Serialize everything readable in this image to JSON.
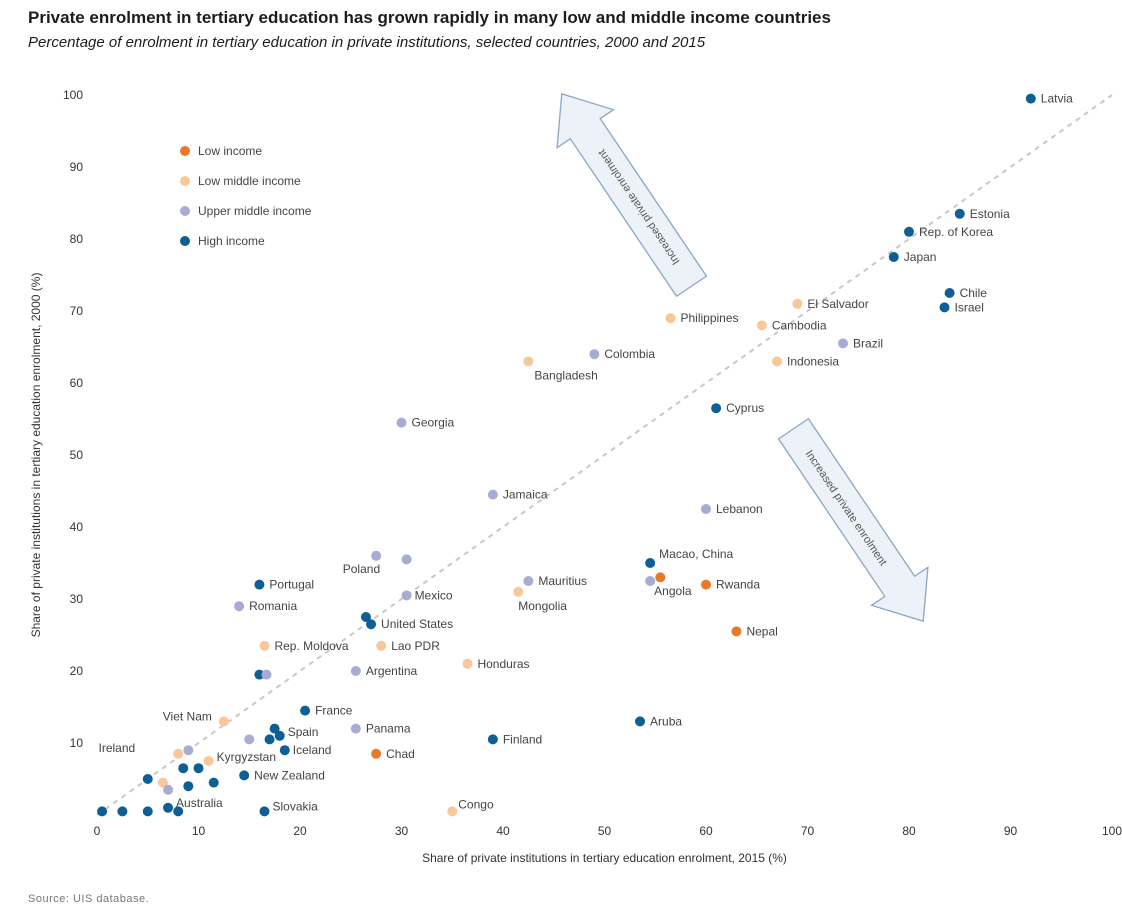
{
  "title": "Private enrolment in tertiary education has grown rapidly in many low and middle income countries",
  "subtitle": "Percentage of enrolment in tertiary education in private institutions, selected countries, 2000 and 2015",
  "source": "Source: UIS database.",
  "colors": {
    "low_income": "#e8782a",
    "low_middle_income": "#f7c99a",
    "upper_middle_income": "#a7acd3",
    "high_income": "#0e5f94",
    "diagonal": "#c8c8c8",
    "arrow_fill": "#edf2f8",
    "arrow_stroke": "#8aa6c4"
  },
  "annotations": {
    "up": "Increased private enrolment",
    "down": "Increased private enrolment"
  },
  "chart_data": {
    "type": "scatter",
    "title": "Private enrolment in tertiary education has grown rapidly in many low and middle income countries",
    "subtitle": "Percentage of enrolment in tertiary education in private institutions, selected countries, 2000 and 2015",
    "xlabel": "Share of private institutions in tertiary education enrolment, 2015 (%)",
    "ylabel": "Share of private institutions in tertiary education enrolment, 2000 (%)",
    "xlim": [
      0,
      100
    ],
    "ylim": [
      0,
      100
    ],
    "xticks": [
      0,
      10,
      20,
      30,
      40,
      50,
      60,
      70,
      80,
      90,
      100
    ],
    "yticks": [
      10,
      20,
      30,
      40,
      50,
      60,
      70,
      80,
      90,
      100
    ],
    "grid": false,
    "legend_position": "top-left",
    "reference_line": "y = x",
    "legend": [
      {
        "key": "low",
        "label": "Low income"
      },
      {
        "key": "lmid",
        "label": "Low middle income"
      },
      {
        "key": "umid",
        "label": "Upper middle income"
      },
      {
        "key": "high",
        "label": "High income"
      }
    ],
    "points": [
      {
        "label": "Latvia",
        "x": 92,
        "y": 99.5,
        "group": "high"
      },
      {
        "label": "Estonia",
        "x": 85,
        "y": 83.5,
        "group": "high"
      },
      {
        "label": "Rep. of Korea",
        "x": 80,
        "y": 81,
        "group": "high"
      },
      {
        "label": "Japan",
        "x": 78.5,
        "y": 77.5,
        "group": "high"
      },
      {
        "label": "Chile",
        "x": 84,
        "y": 72.5,
        "group": "high"
      },
      {
        "label": "Israel",
        "x": 83.5,
        "y": 70.5,
        "group": "high"
      },
      {
        "label": "El Salvador",
        "x": 69,
        "y": 71,
        "group": "lmid"
      },
      {
        "label": "Philippines",
        "x": 56.5,
        "y": 69,
        "group": "lmid"
      },
      {
        "label": "Cambodia",
        "x": 65.5,
        "y": 68,
        "group": "lmid"
      },
      {
        "label": "Brazil",
        "x": 73.5,
        "y": 65.5,
        "group": "umid"
      },
      {
        "label": "Colombia",
        "x": 49,
        "y": 64,
        "group": "umid"
      },
      {
        "label": "Bangladesh",
        "x": 42.5,
        "y": 63,
        "group": "lmid"
      },
      {
        "label": "Indonesia",
        "x": 67,
        "y": 63,
        "group": "lmid"
      },
      {
        "label": "Cyprus",
        "x": 61,
        "y": 56.5,
        "group": "high"
      },
      {
        "label": "Georgia",
        "x": 30,
        "y": 54.5,
        "group": "umid"
      },
      {
        "label": "Jamaica",
        "x": 39,
        "y": 44.5,
        "group": "umid"
      },
      {
        "label": "Lebanon",
        "x": 60,
        "y": 42.5,
        "group": "umid"
      },
      {
        "label": "Poland",
        "x": 27.5,
        "y": 36,
        "group": "umid"
      },
      {
        "label": "",
        "x": 30.5,
        "y": 35.5,
        "group": "umid"
      },
      {
        "label": "Macao, China",
        "x": 54.5,
        "y": 35,
        "group": "high"
      },
      {
        "label": "",
        "x": 55.5,
        "y": 33,
        "group": "low"
      },
      {
        "label": "Angola",
        "x": 54.5,
        "y": 32.5,
        "group": "umid"
      },
      {
        "label": "Rwanda",
        "x": 60,
        "y": 32,
        "group": "low"
      },
      {
        "label": "Portugal",
        "x": 16,
        "y": 32,
        "group": "high"
      },
      {
        "label": "Mauritius",
        "x": 42.5,
        "y": 32.5,
        "group": "umid"
      },
      {
        "label": "Mongolia",
        "x": 41.5,
        "y": 31,
        "group": "lmid"
      },
      {
        "label": "Mexico",
        "x": 30.5,
        "y": 30.5,
        "group": "umid"
      },
      {
        "label": "Romania",
        "x": 14,
        "y": 29,
        "group": "umid"
      },
      {
        "label": "",
        "x": 26.5,
        "y": 27.5,
        "group": "high"
      },
      {
        "label": "United States",
        "x": 27,
        "y": 26.5,
        "group": "high"
      },
      {
        "label": "Nepal",
        "x": 63,
        "y": 25.5,
        "group": "low"
      },
      {
        "label": "Rep. Moldova",
        "x": 16.5,
        "y": 23.5,
        "group": "lmid"
      },
      {
        "label": "Lao PDR",
        "x": 28,
        "y": 23.5,
        "group": "lmid"
      },
      {
        "label": "Honduras",
        "x": 36.5,
        "y": 21,
        "group": "lmid"
      },
      {
        "label": "Argentina",
        "x": 25.5,
        "y": 20,
        "group": "umid"
      },
      {
        "label": "",
        "x": 16,
        "y": 19.5,
        "group": "high"
      },
      {
        "label": "",
        "x": 16.7,
        "y": 19.5,
        "group": "umid"
      },
      {
        "label": "France",
        "x": 20.5,
        "y": 14.5,
        "group": "high"
      },
      {
        "label": "Aruba",
        "x": 53.5,
        "y": 13,
        "group": "high"
      },
      {
        "label": "Viet Nam",
        "x": 12.5,
        "y": 13,
        "group": "lmid"
      },
      {
        "label": "Panama",
        "x": 25.5,
        "y": 12,
        "group": "umid"
      },
      {
        "label": "",
        "x": 17.5,
        "y": 12,
        "group": "high"
      },
      {
        "label": "Spain",
        "x": 18,
        "y": 11,
        "group": "high"
      },
      {
        "label": "",
        "x": 17,
        "y": 10.5,
        "group": "high"
      },
      {
        "label": "",
        "x": 15,
        "y": 10.5,
        "group": "umid"
      },
      {
        "label": "Finland",
        "x": 39,
        "y": 10.5,
        "group": "high"
      },
      {
        "label": "Iceland",
        "x": 18.5,
        "y": 9,
        "group": "high"
      },
      {
        "label": "",
        "x": 9,
        "y": 9,
        "group": "umid"
      },
      {
        "label": "Ireland",
        "x": 8,
        "y": 8.5,
        "group": "lmid"
      },
      {
        "label": "Chad",
        "x": 27.5,
        "y": 8.5,
        "group": "low"
      },
      {
        "label": "Kyrgyzstan",
        "x": 11,
        "y": 7.5,
        "group": "lmid"
      },
      {
        "label": "",
        "x": 8.5,
        "y": 6.5,
        "group": "high"
      },
      {
        "label": "",
        "x": 10,
        "y": 6.5,
        "group": "high"
      },
      {
        "label": "New Zealand",
        "x": 14.5,
        "y": 5.5,
        "group": "high"
      },
      {
        "label": "",
        "x": 5,
        "y": 5,
        "group": "high"
      },
      {
        "label": "",
        "x": 6.5,
        "y": 4.5,
        "group": "lmid"
      },
      {
        "label": "",
        "x": 9,
        "y": 4,
        "group": "high"
      },
      {
        "label": "",
        "x": 11.5,
        "y": 4.5,
        "group": "high"
      },
      {
        "label": "",
        "x": 7,
        "y": 3.5,
        "group": "umid"
      },
      {
        "label": "Australia",
        "x": 7,
        "y": 1,
        "group": "high"
      },
      {
        "label": "",
        "x": 8,
        "y": 0.5,
        "group": "high"
      },
      {
        "label": "Slovakia",
        "x": 16.5,
        "y": 0.5,
        "group": "high"
      },
      {
        "label": "Congo",
        "x": 35,
        "y": 0.5,
        "group": "lmid"
      },
      {
        "label": "",
        "x": 0.5,
        "y": 0.5,
        "group": "high"
      },
      {
        "label": "",
        "x": 2.5,
        "y": 0.5,
        "group": "high"
      },
      {
        "label": "",
        "x": 5,
        "y": 0.5,
        "group": "high"
      }
    ]
  }
}
